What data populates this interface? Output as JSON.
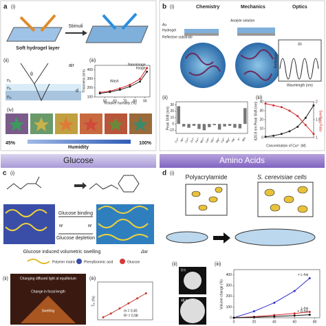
{
  "panel_a": {
    "label": "a",
    "sub_i": "(i)",
    "stimuli": "Stimuli",
    "layer": "Soft hydrogel layer",
    "sub_ii": "(ii)",
    "air": "air",
    "theta": "θ",
    "n1": "n₁",
    "n2": "n₂",
    "n3": "n₃",
    "d": "d",
    "sub_iii": "(iii)",
    "sub_iv": "(iv)",
    "low": "45%",
    "humidity": "Humidity",
    "high": "100%",
    "wash": "Wash",
    "plot": {
      "xlabel": "Relative humidity (%)",
      "ylabel": "Thickness (nm)",
      "xlim": [
        40,
        95
      ],
      "ylim": [
        100,
        450
      ],
      "xticks": [
        50,
        60,
        70,
        80,
        90
      ],
      "yticks": [
        100,
        200,
        300,
        400
      ],
      "series": [
        {
          "name": "Nanoimage",
          "color": "#d62728",
          "x": [
            45,
            55,
            65,
            75,
            85,
            92
          ],
          "values": [
            150,
            165,
            195,
            235,
            300,
            420
          ]
        },
        {
          "name": "Image",
          "color": "#222222",
          "x": [
            45,
            55,
            65,
            75,
            85,
            92
          ],
          "values": [
            140,
            155,
            180,
            215,
            270,
            380
          ]
        }
      ]
    }
  },
  "panel_b": {
    "label": "b",
    "sub_i": "(i)",
    "chemistry": "Chemistry",
    "mechanics": "Mechanics",
    "optics": "Optics",
    "au": "Au",
    "hydrogel": "Hydrogel",
    "substrate": "Reflective substrate",
    "analyte": "Analyte solution",
    "reflection": "Reflection",
    "wavelength": "Wavelength (nm)",
    "delta": "Δλ",
    "sub_ii": "(ii)",
    "sub_iii": "(iii)",
    "bars": {
      "ylabel": "Peak Shift (nm)",
      "categories": [
        "Cu²⁺",
        "Ni²⁺",
        "Co²⁺",
        "Zn²⁺",
        "Fe³⁺",
        "Mn²⁺",
        "Cd²⁺",
        "Pb²⁺",
        "Hg²⁺",
        "Ca²⁺",
        "Mg²⁺",
        "Na⁺",
        "K⁺",
        "Mix"
      ],
      "values": [
        28,
        -4,
        -6,
        -3,
        -8,
        -10,
        -5,
        -2,
        -9,
        -4,
        -3,
        -6,
        -7,
        25
      ],
      "ylim": [
        -15,
        35
      ],
      "yticks": [
        -10,
        0,
        10,
        20,
        30
      ],
      "color": "#777777"
    },
    "plot": {
      "xlabel": "Concentration of Cu²⁺ (M)",
      "ylabel": "620.8 nm Peak Shift (nm)",
      "y2label": "Swelling Ratio",
      "xlim": [
        0,
        6
      ],
      "ylim": [
        0,
        40
      ],
      "yticks": [
        0,
        10,
        20,
        30,
        40
      ],
      "y2lim": [
        1.0,
        2.0
      ],
      "y2ticks": [
        1.0,
        1.5,
        2.0
      ],
      "series": [
        {
          "color": "#222222",
          "x": [
            0,
            1,
            2,
            3,
            4,
            5,
            6
          ],
          "values": [
            1,
            2,
            4,
            7,
            12,
            22,
            36
          ]
        },
        {
          "color": "#d62728",
          "axis": "y2",
          "x": [
            0,
            1,
            2,
            3,
            4,
            5,
            6
          ],
          "values": [
            1.95,
            1.9,
            1.85,
            1.75,
            1.6,
            1.35,
            1.1
          ]
        }
      ]
    }
  },
  "panel_c": {
    "title": "Glucose",
    "label": "c",
    "sub_i": "(i)",
    "binding": "Glucose binding",
    "depletion": "Glucose depletion",
    "w_left": "w",
    "w_right": "w",
    "swelling_caption": "Glucose induced volumetric swelling",
    "dw": "Δw",
    "legend_polymer": "Polymer matrix",
    "legend_pba": "Phenylboronic acid",
    "legend_glucose": "Glucose",
    "sub_ii": "(ii)",
    "diffuse": "Changing diffused light at equilibrium",
    "focal": "Change in focal length",
    "swelling": "Swelling",
    "sub_iii": "(iii)",
    "plot": {
      "ylabel": "Tₘ (%)",
      "slope": "m = 0.45",
      "r2": "R² = 0.98",
      "xlim": [
        0,
        50
      ],
      "ylim": [
        20,
        50
      ],
      "series": [
        {
          "color": "#c0392b",
          "x": [
            5,
            12,
            20,
            28,
            36,
            44
          ],
          "values": [
            22,
            25,
            29,
            33,
            37,
            41
          ]
        }
      ]
    }
  },
  "panel_d": {
    "title": "Amino Acids",
    "label": "d",
    "sub_i": "(i)",
    "left": "Polyacrylamide",
    "right": "S. cerevisiae cells",
    "sub_ii": "(ii)",
    "t0": "0 h",
    "t48": "48 h",
    "sub_iii": "(iii)",
    "plot": {
      "ylabel": "Volume change (%)",
      "xlim": [
        0,
        85
      ],
      "ylim": [
        0,
        450
      ],
      "xticks": [
        0,
        20,
        40,
        60,
        80
      ],
      "yticks": [
        0,
        100,
        200,
        300,
        400
      ],
      "series": [
        {
          "name": "+ L-his",
          "color": "#2c2cc8",
          "x": [
            0,
            20,
            40,
            60,
            75
          ],
          "values": [
            0,
            60,
            140,
            250,
            370
          ]
        },
        {
          "name": "L-his",
          "color": "#d62728",
          "x": [
            0,
            20,
            40,
            60,
            75
          ],
          "values": [
            0,
            10,
            25,
            40,
            55
          ]
        },
        {
          "name": "+ D-his",
          "color": "#111111",
          "x": [
            0,
            20,
            40,
            60,
            75
          ],
          "values": [
            0,
            5,
            12,
            20,
            28
          ]
        }
      ]
    }
  }
}
